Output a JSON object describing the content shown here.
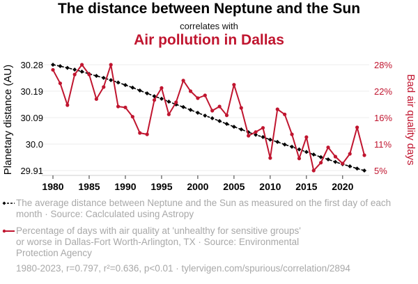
{
  "header": {
    "title": "The distance between Neptune and the Sun",
    "subtitle": "correlates with",
    "title2": "Air pollution in Dallas"
  },
  "colors": {
    "series1": "#000000",
    "series2": "#c0152f",
    "grid": "#eeeeee",
    "legend_text": "#a8a8a8"
  },
  "legend": [
    {
      "text": "The average distance between Neptune and the Sun as measured on the first day of each month · Source: Caclculated using Astropy"
    },
    {
      "text": "Percentage of days with air quality at 'unhealthy for sensitive groups' or worse in Dallas-Fort Worth-Arlington, TX · Source: Environmental Protection Agency"
    }
  ],
  "footer": "1980-2023, r=0.797, r²=0.636, p<0.01 · tylervigen.com/spurious/correlation/2894",
  "chart_data": {
    "type": "line",
    "title": "The distance between Neptune and the Sun correlates with Air pollution in Dallas",
    "xlabel": "",
    "ylabel": "Planetary distance (AU)",
    "y2label": "Bad air quality days",
    "x": [
      1980,
      1981,
      1982,
      1983,
      1984,
      1985,
      1986,
      1987,
      1988,
      1989,
      1990,
      1991,
      1992,
      1993,
      1994,
      1995,
      1996,
      1997,
      1998,
      1999,
      2000,
      2001,
      2002,
      2003,
      2004,
      2005,
      2006,
      2007,
      2008,
      2009,
      2010,
      2011,
      2012,
      2013,
      2014,
      2015,
      2016,
      2017,
      2018,
      2019,
      2020,
      2021,
      2022,
      2023
    ],
    "xticks": [
      "1980",
      "1985",
      "1990",
      "1995",
      "2000",
      "2005",
      "2010",
      "2015",
      "2020"
    ],
    "xlim": [
      1980,
      2023
    ],
    "ylim": [
      29.91,
      30.28
    ],
    "yticks": [
      "30.28",
      "30.19",
      "30.09",
      "30.0",
      "29.91"
    ],
    "y2lim": [
      5.1,
      27.9
    ],
    "y2ticks": [
      "28%",
      "22%",
      "16%",
      "11%",
      "5%"
    ],
    "grid": true,
    "legend_position": "bottom",
    "series": [
      {
        "name": "The average distance between Neptune and the Sun as measured on the first day of each month",
        "axis": "left",
        "style": "dashed-diamond",
        "values": [
          30.28,
          30.275,
          30.269,
          30.263,
          30.256,
          30.248,
          30.241,
          30.234,
          30.226,
          30.218,
          30.209,
          30.2,
          30.19,
          30.18,
          30.17,
          30.161,
          30.151,
          30.141,
          30.132,
          30.122,
          30.112,
          30.102,
          30.093,
          30.083,
          30.073,
          30.063,
          30.054,
          30.044,
          30.035,
          30.027,
          30.018,
          30.01,
          30.001,
          29.993,
          29.984,
          29.975,
          29.966,
          29.957,
          29.949,
          29.94,
          29.932,
          29.925,
          29.917,
          29.91
        ]
      },
      {
        "name": "Percentage of days with air quality at 'unhealthy for sensitive groups' or worse in Dallas-Fort Worth-Arlington, TX",
        "axis": "right",
        "style": "solid-dot",
        "values": [
          26.8,
          23.9,
          19.2,
          25.8,
          27.9,
          25.8,
          20.5,
          23.1,
          27.9,
          18.9,
          18.7,
          16.7,
          13.2,
          12.9,
          20.3,
          22.9,
          17.2,
          19.8,
          24.5,
          22.2,
          20.7,
          21.3,
          18.0,
          18.9,
          17.0,
          23.6,
          18.6,
          12.6,
          13.4,
          14.3,
          7.8,
          18.3,
          17.2,
          12.9,
          7.7,
          12.3,
          5.1,
          6.8,
          10.1,
          8.1,
          6.6,
          8.7,
          14.4,
          8.4
        ]
      }
    ]
  }
}
